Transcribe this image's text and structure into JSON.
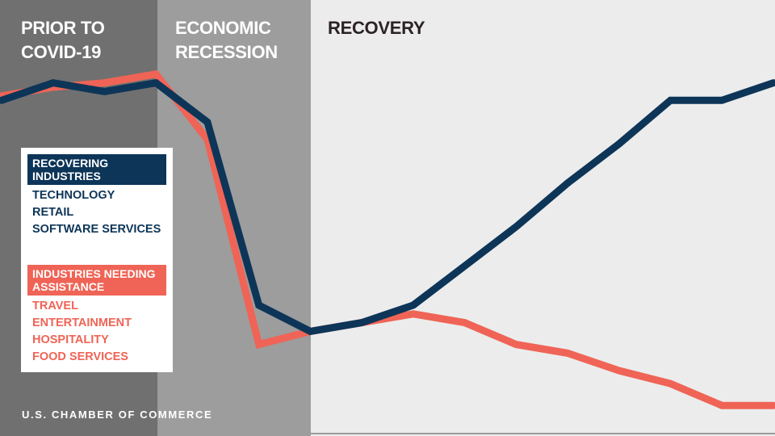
{
  "phases": [
    "PRIOR TO\nCOVID-19",
    "ECONOMIC\nRECESSION",
    "RECOVERY"
  ],
  "legend": {
    "recovering": {
      "title": "RECOVERING INDUSTRIES",
      "items": [
        "TECHNOLOGY",
        "RETAIL",
        "SOFTWARE SERVICES"
      ]
    },
    "needing": {
      "title": "INDUSTRIES NEEDING ASSISTANCE",
      "items": [
        "TRAVEL",
        "ENTERTAINMENT",
        "HOSPITALITY",
        "FOOD SERVICES"
      ]
    }
  },
  "footer": "U.S. CHAMBER OF COMMERCE",
  "colors": {
    "recovering": "#0d3558",
    "needing": "#ef6456",
    "prior_band": "#707070",
    "recession_band": "#9d9d9d",
    "recovery_band": "#ececec"
  },
  "chart_data": {
    "type": "line",
    "x": [
      0,
      1,
      2,
      3,
      4,
      5,
      6,
      7,
      8,
      9,
      10,
      11,
      12,
      13,
      14,
      15
    ],
    "ylim": [
      0,
      100
    ],
    "grid": false,
    "legend_placement": "left",
    "series": [
      {
        "name": "RECOVERING INDUSTRIES",
        "values": [
          77,
          81,
          79,
          81,
          72,
          30,
          24,
          26,
          30,
          39,
          48,
          58,
          67,
          77,
          77,
          81
        ]
      },
      {
        "name": "INDUSTRIES NEEDING ASSISTANCE",
        "values": [
          78,
          80,
          81,
          83,
          68,
          21,
          24,
          26,
          28,
          26,
          21,
          19,
          15,
          12,
          7,
          7
        ]
      }
    ]
  }
}
